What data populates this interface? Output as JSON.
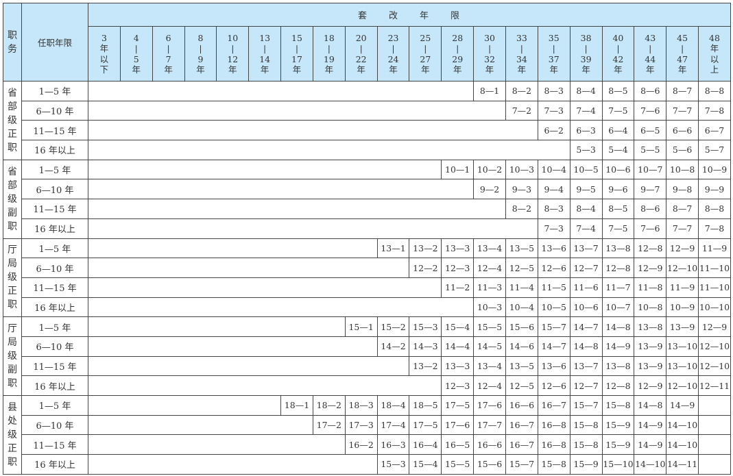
{
  "header": {
    "position_label": "职务",
    "tenure_label": "任职年限",
    "group_title": "套　　改　　年　　限",
    "columns": [
      [
        "3",
        "年",
        "以",
        "下"
      ],
      [
        "4",
        "|",
        "5",
        "年"
      ],
      [
        "6",
        "|",
        "7",
        "年"
      ],
      [
        "8",
        "|",
        "9",
        "年"
      ],
      [
        "10",
        "|",
        "12",
        "年"
      ],
      [
        "13",
        "|",
        "14",
        "年"
      ],
      [
        "15",
        "|",
        "17",
        "年"
      ],
      [
        "18",
        "|",
        "19",
        "年"
      ],
      [
        "20",
        "|",
        "22",
        "年"
      ],
      [
        "23",
        "|",
        "24",
        "年"
      ],
      [
        "25",
        "|",
        "27",
        "年"
      ],
      [
        "28",
        "|",
        "29",
        "年"
      ],
      [
        "30",
        "|",
        "32",
        "年"
      ],
      [
        "33",
        "|",
        "34",
        "年"
      ],
      [
        "35",
        "|",
        "37",
        "年"
      ],
      [
        "38",
        "|",
        "39",
        "年"
      ],
      [
        "40",
        "|",
        "42",
        "年"
      ],
      [
        "43",
        "|",
        "44",
        "年"
      ],
      [
        "45",
        "|",
        "47",
        "年"
      ],
      [
        "48",
        "年",
        "以",
        "上"
      ]
    ]
  },
  "groups": [
    {
      "position": [
        "省",
        "部",
        "级",
        "正",
        "职"
      ],
      "rows": [
        {
          "tenure": "1—5 年",
          "start": 12,
          "values": [
            "8—1",
            "8—2",
            "8—3",
            "8—4",
            "8—5",
            "8—6",
            "8—7",
            "8—8"
          ]
        },
        {
          "tenure": "6—10 年",
          "start": 13,
          "values": [
            "7—2",
            "7—3",
            "7—4",
            "7—5",
            "7—6",
            "7—7",
            "7—8"
          ]
        },
        {
          "tenure": "11—15 年",
          "start": 14,
          "values": [
            "6—2",
            "6—3",
            "6—4",
            "6—5",
            "6—6",
            "6—7"
          ]
        },
        {
          "tenure": "16 年以上",
          "start": 15,
          "values": [
            "5—3",
            "5—4",
            "5—5",
            "5—6",
            "5—7"
          ]
        }
      ]
    },
    {
      "position": [
        "省",
        "部",
        "级",
        "副",
        "职"
      ],
      "rows": [
        {
          "tenure": "1—5 年",
          "start": 11,
          "values": [
            "10—1",
            "10—2",
            "10—3",
            "10—4",
            "10—5",
            "10—6",
            "10—7",
            "10—8",
            "10—9"
          ]
        },
        {
          "tenure": "6—10 年",
          "start": 12,
          "values": [
            "9—2",
            "9—3",
            "9—4",
            "9—5",
            "9—6",
            "9—7",
            "9—8",
            "9—9"
          ]
        },
        {
          "tenure": "11—15 年",
          "start": 13,
          "values": [
            "8—2",
            "8—3",
            "8—4",
            "8—5",
            "8—6",
            "8—7",
            "8—8"
          ]
        },
        {
          "tenure": "16 年以上",
          "start": 14,
          "values": [
            "7—3",
            "7—4",
            "7—5",
            "7—6",
            "7—7",
            "7—8"
          ]
        }
      ]
    },
    {
      "position": [
        "厅",
        "局",
        "级",
        "正",
        "职"
      ],
      "rows": [
        {
          "tenure": "1—5 年",
          "start": 9,
          "values": [
            "13—1",
            "13—2",
            "13—3",
            "13—4",
            "13—5",
            "13—6",
            "13—7",
            "13—8",
            "12—8",
            "12—9",
            "11—9"
          ]
        },
        {
          "tenure": "6—10 年",
          "start": 10,
          "values": [
            "12—2",
            "12—3",
            "12—4",
            "12—5",
            "12—6",
            "12—7",
            "12—8",
            "12—9",
            "12—10",
            "11—10"
          ]
        },
        {
          "tenure": "11—15 年",
          "start": 11,
          "values": [
            "11—2",
            "11—3",
            "11—4",
            "11—5",
            "11—6",
            "11—7",
            "11—8",
            "11—9",
            "11—10"
          ]
        },
        {
          "tenure": "16 年以上",
          "start": 12,
          "values": [
            "10—3",
            "10—4",
            "10—5",
            "10—6",
            "10—7",
            "10—8",
            "10—9",
            "10—10"
          ]
        }
      ]
    },
    {
      "position": [
        "厅",
        "局",
        "级",
        "副",
        "职"
      ],
      "rows": [
        {
          "tenure": "1—5 年",
          "start": 8,
          "values": [
            "15—1",
            "15—2",
            "15—3",
            "15—4",
            "15—5",
            "15—6",
            "15—7",
            "14—7",
            "14—8",
            "13—8",
            "13—9",
            "12—9"
          ]
        },
        {
          "tenure": "6—10 年",
          "start": 9,
          "values": [
            "14—2",
            "14—3",
            "14—4",
            "14—5",
            "14—6",
            "14—7",
            "14—8",
            "14—9",
            "13—9",
            "13—10",
            "12—10"
          ]
        },
        {
          "tenure": "11—15 年",
          "start": 10,
          "values": [
            "13—2",
            "13—3",
            "13—4",
            "13—5",
            "13—6",
            "13—7",
            "13—8",
            "13—9",
            "13—10",
            "12—10"
          ]
        },
        {
          "tenure": "16 年以上",
          "start": 11,
          "values": [
            "12—3",
            "12—4",
            "12—5",
            "12—6",
            "12—7",
            "12—8",
            "12—9",
            "12—10",
            "12—11"
          ]
        }
      ]
    },
    {
      "position": [
        "县",
        "处",
        "级",
        "正",
        "职"
      ],
      "rows": [
        {
          "tenure": "1—5 年",
          "start": 6,
          "values": [
            "18—1",
            "18—2",
            "18—3",
            "18—4",
            "18—5",
            "17—5",
            "17—6",
            "16—6",
            "16—7",
            "15—7",
            "15—8",
            "14—8",
            "14—9",
            ""
          ]
        },
        {
          "tenure": "6—10 年",
          "start": 7,
          "values": [
            "17—2",
            "17—3",
            "17—4",
            "17—5",
            "17—6",
            "17—7",
            "16—7",
            "16—8",
            "15—8",
            "15—9",
            "14—9",
            "14—10",
            ""
          ]
        },
        {
          "tenure": "11—15 年",
          "start": 8,
          "values": [
            "16—2",
            "16—3",
            "16—4",
            "16—5",
            "16—6",
            "16—7",
            "16—8",
            "15—8",
            "15—9",
            "14—9",
            "14—10",
            ""
          ]
        },
        {
          "tenure": "16 年以上",
          "start": 9,
          "values": [
            "15—3",
            "15—4",
            "15—5",
            "15—6",
            "15—7",
            "15—8",
            "15—9",
            "15—10",
            "14—10",
            "14—11",
            ""
          ]
        }
      ]
    }
  ],
  "colors": {
    "header_bg": "#c6e7f9",
    "border": "#444444"
  }
}
